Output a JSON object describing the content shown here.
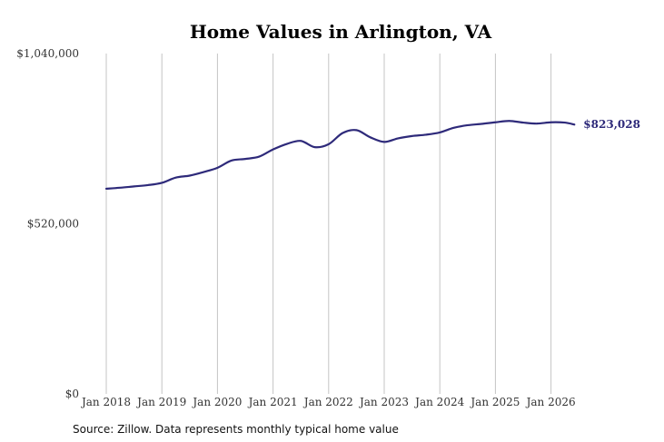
{
  "chart_data": {
    "type": "line",
    "title": "Home Values in Arlington, VA",
    "source": "Source: Zillow. Data represents monthly typical home value",
    "ylim": [
      0,
      1040000
    ],
    "y_ticks": [
      {
        "value": 0,
        "label": "$0"
      },
      {
        "value": 520000,
        "label": "$520,000"
      },
      {
        "value": 1040000,
        "label": "$1,040,000"
      }
    ],
    "x_ticks": [
      {
        "value": 2018.0,
        "label": "Jan 2018"
      },
      {
        "value": 2019.0,
        "label": "Jan 2019"
      },
      {
        "value": 2020.0,
        "label": "Jan 2020"
      },
      {
        "value": 2021.0,
        "label": "Jan 2021"
      },
      {
        "value": 2022.0,
        "label": "Jan 2022"
      },
      {
        "value": 2023.0,
        "label": "Jan 2023"
      },
      {
        "value": 2024.0,
        "label": "Jan 2024"
      },
      {
        "value": 2025.0,
        "label": "Jan 2025"
      },
      {
        "value": 2026.0,
        "label": "Jan 2026"
      }
    ],
    "grid": "vertical",
    "series": [
      {
        "color": "#2e2a7a",
        "end_label": "$823,028",
        "points": [
          [
            2018.0,
            627000
          ],
          [
            2018.25,
            630000
          ],
          [
            2018.5,
            634000
          ],
          [
            2018.75,
            638000
          ],
          [
            2019.0,
            645000
          ],
          [
            2019.25,
            661000
          ],
          [
            2019.5,
            667000
          ],
          [
            2019.75,
            678000
          ],
          [
            2020.0,
            691000
          ],
          [
            2020.25,
            713000
          ],
          [
            2020.5,
            718000
          ],
          [
            2020.75,
            725000
          ],
          [
            2021.0,
            747000
          ],
          [
            2021.25,
            764000
          ],
          [
            2021.5,
            773000
          ],
          [
            2021.75,
            754000
          ],
          [
            2022.0,
            763000
          ],
          [
            2022.25,
            797000
          ],
          [
            2022.5,
            806000
          ],
          [
            2022.75,
            784000
          ],
          [
            2023.0,
            770000
          ],
          [
            2023.25,
            781000
          ],
          [
            2023.5,
            788000
          ],
          [
            2023.75,
            792000
          ],
          [
            2024.0,
            799000
          ],
          [
            2024.25,
            813000
          ],
          [
            2024.5,
            821000
          ],
          [
            2024.75,
            825000
          ],
          [
            2025.0,
            830000
          ],
          [
            2025.25,
            834000
          ],
          [
            2025.5,
            829000
          ],
          [
            2025.75,
            826000
          ],
          [
            2026.0,
            830000
          ],
          [
            2026.25,
            829000
          ],
          [
            2026.42,
            823028
          ]
        ]
      }
    ]
  }
}
